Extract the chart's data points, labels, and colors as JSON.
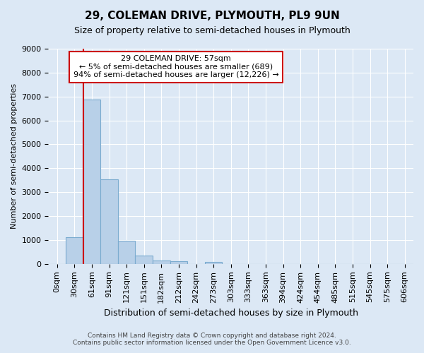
{
  "title": "29, COLEMAN DRIVE, PLYMOUTH, PL9 9UN",
  "subtitle": "Size of property relative to semi-detached houses in Plymouth",
  "xlabel": "Distribution of semi-detached houses by size in Plymouth",
  "ylabel": "Number of semi-detached properties",
  "bin_labels": [
    "0sqm",
    "30sqm",
    "61sqm",
    "91sqm",
    "121sqm",
    "151sqm",
    "182sqm",
    "212sqm",
    "242sqm",
    "273sqm",
    "303sqm",
    "333sqm",
    "363sqm",
    "394sqm",
    "424sqm",
    "454sqm",
    "485sqm",
    "515sqm",
    "545sqm",
    "575sqm",
    "606sqm"
  ],
  "bin_values": [
    0,
    1130,
    6880,
    3550,
    970,
    340,
    150,
    110,
    0,
    80,
    0,
    0,
    0,
    0,
    0,
    0,
    0,
    0,
    0,
    0,
    0
  ],
  "bar_color": "#b8d0e8",
  "bar_edge_color": "#7aabcf",
  "red_line_x": 2,
  "annotation_title": "29 COLEMAN DRIVE: 57sqm",
  "annotation_line1": "← 5% of semi-detached houses are smaller (689)",
  "annotation_line2": "94% of semi-detached houses are larger (12,226) →",
  "annotation_box_color": "#ffffff",
  "annotation_box_edge_color": "#cc0000",
  "ylim": [
    0,
    9000
  ],
  "yticks": [
    0,
    1000,
    2000,
    3000,
    4000,
    5000,
    6000,
    7000,
    8000,
    9000
  ],
  "footer_line1": "Contains HM Land Registry data © Crown copyright and database right 2024.",
  "footer_line2": "Contains public sector information licensed under the Open Government Licence v3.0.",
  "bg_color": "#dce8f5",
  "plot_bg_color": "#dce8f5",
  "grid_color": "#ffffff",
  "title_fontsize": 11,
  "subtitle_fontsize": 9,
  "xlabel_fontsize": 9,
  "ylabel_fontsize": 8,
  "tick_fontsize": 8,
  "annot_fontsize": 8,
  "footer_fontsize": 6.5
}
